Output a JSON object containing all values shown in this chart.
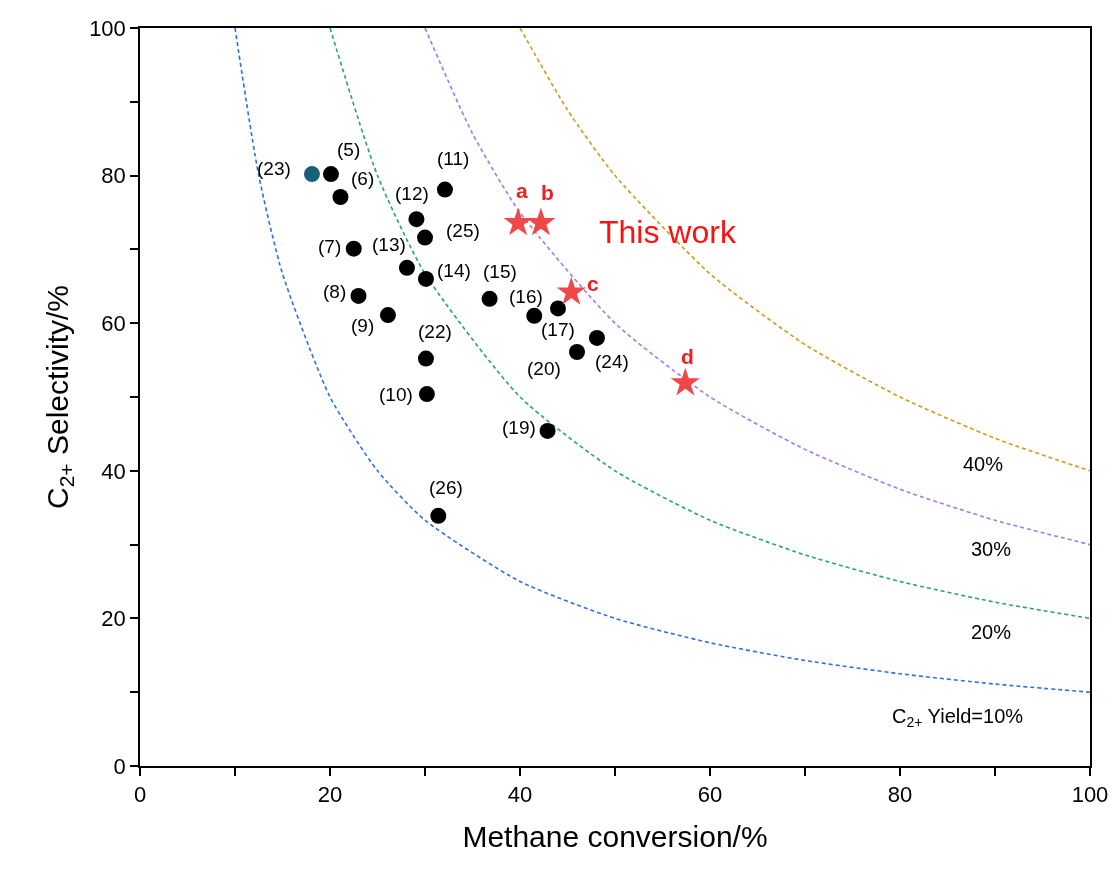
{
  "chart_data": {
    "type": "scatter",
    "xlabel": "Methane conversion/%",
    "ylabel": "C$_{2+}$ Selectivity/%",
    "xlim": [
      0,
      100
    ],
    "ylim": [
      0,
      100
    ],
    "xticks": [
      0,
      {
        "value": 10,
        "label": null
      },
      20,
      {
        "value": 30,
        "label": null
      },
      40,
      {
        "value": 50,
        "label": null
      },
      60,
      {
        "value": 70,
        "label": null
      },
      80,
      {
        "value": 90,
        "label": null
      },
      100
    ],
    "yticks": [
      0,
      {
        "value": 10,
        "label": null
      },
      20,
      {
        "value": 30,
        "label": null
      },
      40,
      {
        "value": 50,
        "label": null
      },
      60,
      {
        "value": 70,
        "label": null
      },
      80,
      {
        "value": 90,
        "label": null
      },
      100
    ],
    "line_style": "dashed",
    "series": [
      {
        "type": "line",
        "color": "#2f6fe0",
        "marker": "none",
        "x": [
          10,
          12.5,
          15,
          20,
          25,
          30,
          40,
          50,
          60,
          70,
          80,
          90,
          100
        ],
        "values": [
          100,
          80,
          66.7,
          50,
          40,
          33.3,
          25,
          20,
          16.7,
          14.3,
          12.5,
          11.1,
          10
        ]
      },
      {
        "type": "line",
        "color": "#2aa56a",
        "marker": "none",
        "x": [
          20,
          25,
          30,
          40,
          50,
          60,
          70,
          80,
          90,
          100
        ],
        "values": [
          100,
          80,
          66.7,
          50,
          40,
          33.3,
          28.6,
          25,
          22.2,
          20
        ]
      },
      {
        "type": "line",
        "color": "#a57ae6",
        "marker": "none",
        "x": [
          30,
          35,
          40,
          50,
          60,
          70,
          80,
          90,
          100
        ],
        "values": [
          100,
          85.7,
          75,
          60,
          50,
          42.9,
          37.5,
          33.3,
          30
        ]
      },
      {
        "type": "line",
        "color": "#d09a18",
        "marker": "none",
        "x": [
          40,
          45,
          50,
          60,
          70,
          80,
          90,
          100
        ],
        "values": [
          100,
          88.9,
          80,
          66.7,
          57.1,
          50,
          44.4,
          40
        ]
      },
      {
        "marker": "circle",
        "colors": [
          "#17607a",
          "#000000",
          "#000000",
          "#000000",
          "#000000",
          "#000000",
          "#000000",
          "#000000",
          "#000000",
          "#000000",
          "#000000",
          "#000000",
          "#000000",
          "#000000",
          "#000000",
          "#000000",
          "#000000",
          "#000000",
          "#000000",
          "#000000"
        ],
        "x": [
          18.1,
          20.1,
          21.1,
          32.1,
          29.1,
          30.0,
          22.5,
          28.1,
          30.1,
          23.0,
          26.1,
          36.8,
          41.5,
          44.0,
          46.0,
          48.1,
          30.1,
          30.2,
          42.9,
          31.4
        ],
        "values": [
          80.2,
          80.2,
          77.1,
          78.1,
          74.1,
          71.6,
          70.1,
          67.5,
          66.0,
          63.7,
          61.1,
          63.3,
          61.0,
          62.0,
          56.1,
          58.0,
          55.2,
          50.4,
          45.4,
          33.9
        ]
      },
      {
        "marker": "star",
        "color": "#f04848",
        "x": [
          39.8,
          42.2,
          45.4,
          57.4
        ],
        "values": [
          73.6,
          73.6,
          64.2,
          51.9
        ]
      }
    ],
    "annotations": [
      {
        "text": "(23)",
        "x": 18.1,
        "y": 80.2
      },
      {
        "text": "(5)",
        "x": 20.1,
        "y": 80.2
      },
      {
        "text": "(6)",
        "x": 21.1,
        "y": 77.1
      },
      {
        "text": "(11)",
        "x": 32.1,
        "y": 78.1
      },
      {
        "text": "(12)",
        "x": 29.1,
        "y": 74.1
      },
      {
        "text": "(25)",
        "x": 30.0,
        "y": 71.6
      },
      {
        "text": "(7)",
        "x": 22.5,
        "y": 70.1
      },
      {
        "text": "(13)",
        "x": 28.1,
        "y": 67.5
      },
      {
        "text": "(14)",
        "x": 30.1,
        "y": 66.0
      },
      {
        "text": "(8)",
        "x": 23.0,
        "y": 63.7
      },
      {
        "text": "(9)",
        "x": 26.1,
        "y": 61.1
      },
      {
        "text": "(15)",
        "x": 36.8,
        "y": 63.3
      },
      {
        "text": "(16)",
        "x": 41.5,
        "y": 61.0
      },
      {
        "text": "(17)",
        "x": 44.0,
        "y": 62.0
      },
      {
        "text": "(20)",
        "x": 46.0,
        "y": 56.1
      },
      {
        "text": "(24)",
        "x": 48.1,
        "y": 58.0
      },
      {
        "text": "(22)",
        "x": 30.1,
        "y": 55.2
      },
      {
        "text": "(10)",
        "x": 30.2,
        "y": 50.4
      },
      {
        "text": "(19)",
        "x": 42.9,
        "y": 45.4
      },
      {
        "text": "(26)",
        "x": 31.4,
        "y": 33.9
      },
      {
        "text": "a",
        "x": 39.8,
        "y": 73.6
      },
      {
        "text": "b",
        "x": 42.2,
        "y": 73.6
      },
      {
        "text": "c",
        "x": 45.4,
        "y": 64.2
      },
      {
        "text": "d",
        "x": 57.4,
        "y": 51.9
      },
      {
        "text": "This work",
        "x": 55.6,
        "y": 72.4
      },
      "C$_{2+}$ Yield=10%",
      "20%",
      "30%",
      "40%"
    ]
  }
}
